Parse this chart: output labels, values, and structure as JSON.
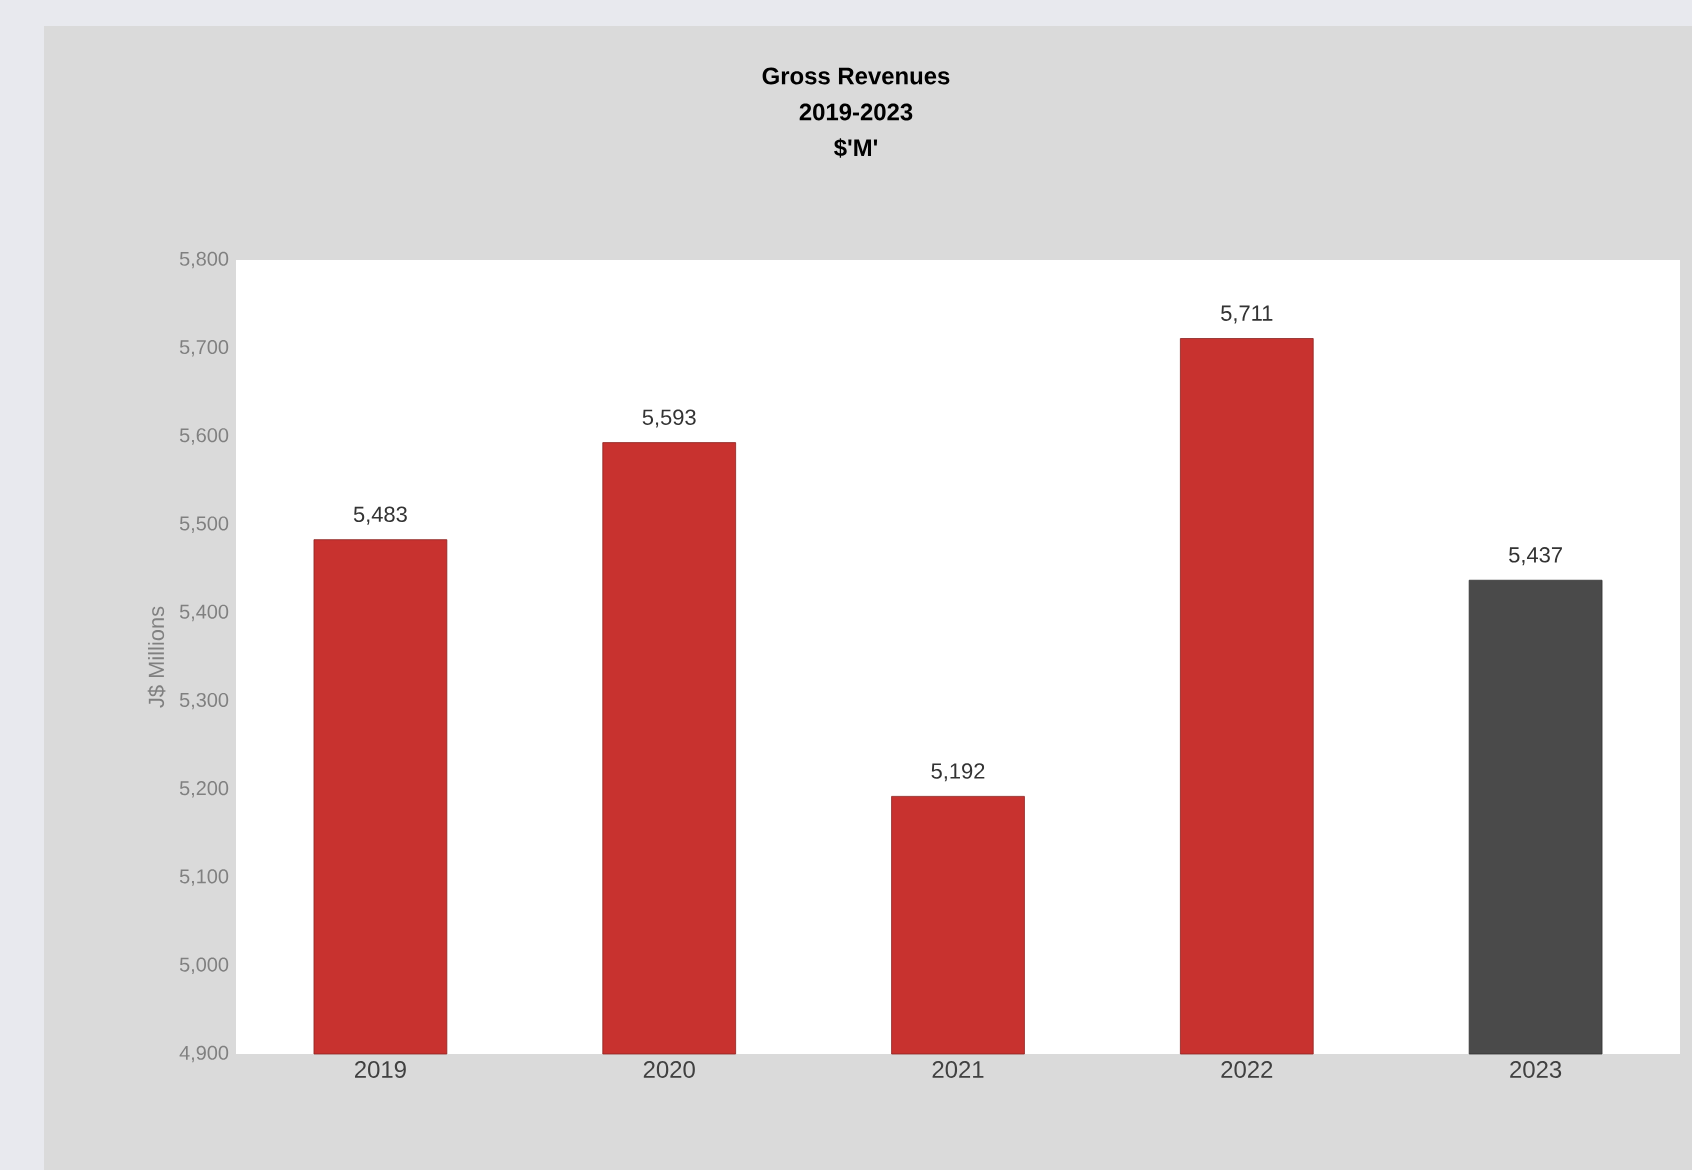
{
  "chart_data": {
    "type": "bar",
    "title": "Gross Revenues",
    "subtitle": "2019-2023",
    "annotations": [
      "$'M'"
    ],
    "ylabel": "J$ Millions",
    "categories": [
      "2019",
      "2020",
      "2021",
      "2022",
      "2023"
    ],
    "values": [
      5483,
      5593,
      5192,
      5711,
      5437
    ],
    "colors": [
      "#c8322f",
      "#c8322f",
      "#c8322f",
      "#c8322f",
      "#4a4a4a"
    ],
    "value_labels": [
      "5,483",
      "5,593",
      "5,192",
      "5,711",
      "5,437"
    ],
    "ylim": [
      4900,
      5800
    ],
    "yticks": [
      {
        "value": 4900,
        "label": "4,900"
      },
      {
        "value": 5000,
        "label": "5,000"
      },
      {
        "value": 5100,
        "label": "5,100"
      },
      {
        "value": 5200,
        "label": "5,200"
      },
      {
        "value": 5300,
        "label": "5,300"
      },
      {
        "value": 5400,
        "label": "5,400"
      },
      {
        "value": 5500,
        "label": "5,500"
      },
      {
        "value": 5600,
        "label": "5,600"
      },
      {
        "value": 5700,
        "label": "5,700"
      },
      {
        "value": 5800,
        "label": "5,800"
      }
    ],
    "grid": false
  }
}
